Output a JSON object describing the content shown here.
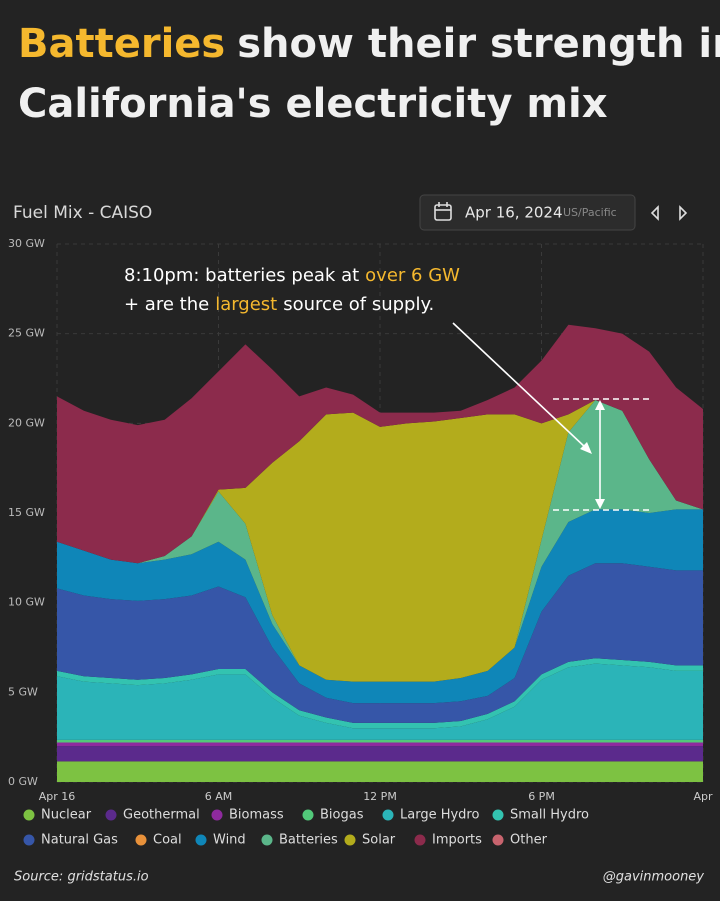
{
  "header": {
    "title_highlight": "Batteries",
    "title_rest_1": "show their strength in",
    "title_line_2": "California's electricity mix"
  },
  "widget": {
    "name": "Fuel Mix - CAISO",
    "date": "Apr 16, 2024",
    "timezone": "US/Pacific"
  },
  "footer": {
    "source": "Source: gridstatus.io",
    "credit": "@gavinmooney"
  },
  "chart_data": {
    "type": "stacked-area",
    "annotation": {
      "line_1_a": "8:10pm: batteries peak at",
      "line_1_b": "over 6 GW",
      "line_2_a": "+ are the",
      "line_2_b": "largest",
      "line_2_c": "source of supply."
    },
    "x": [
      0,
      1,
      2,
      3,
      4,
      5,
      6,
      7,
      8,
      9,
      10,
      11,
      12,
      13,
      14,
      15,
      16,
      17,
      18,
      19,
      20,
      21,
      22,
      23,
      24
    ],
    "xlim": [
      0,
      24
    ],
    "xticks": [
      {
        "value": 0,
        "label": "Apr 16"
      },
      {
        "value": 6,
        "label": "6 AM"
      },
      {
        "value": 12,
        "label": "12 PM"
      },
      {
        "value": 18,
        "label": "6 PM"
      },
      {
        "value": 24,
        "label": "Apr"
      }
    ],
    "ylim": [
      0,
      30
    ],
    "yticks": [
      {
        "value": 0,
        "label": "0 GW"
      },
      {
        "value": 5,
        "label": "5 GW"
      },
      {
        "value": 10,
        "label": "10 GW"
      },
      {
        "value": 15,
        "label": "15 GW"
      },
      {
        "value": 20,
        "label": "20 GW"
      },
      {
        "value": 25,
        "label": "25 GW"
      },
      {
        "value": 30,
        "label": "30 GW"
      }
    ],
    "grid": true,
    "series": [
      {
        "name": "Nuclear",
        "color": "#7dc242",
        "values": [
          1.15,
          1.15,
          1.15,
          1.15,
          1.15,
          1.15,
          1.15,
          1.15,
          1.15,
          1.15,
          1.15,
          1.15,
          1.15,
          1.15,
          1.15,
          1.15,
          1.15,
          1.15,
          1.15,
          1.15,
          1.15,
          1.15,
          1.15,
          1.15,
          1.15
        ]
      },
      {
        "name": "Geothermal",
        "color": "#5b2a8c",
        "values": [
          0.85,
          0.85,
          0.85,
          0.85,
          0.85,
          0.85,
          0.85,
          0.85,
          0.85,
          0.85,
          0.85,
          0.85,
          0.85,
          0.85,
          0.85,
          0.85,
          0.85,
          0.85,
          0.85,
          0.85,
          0.85,
          0.85,
          0.85,
          0.85,
          0.85
        ]
      },
      {
        "name": "Biomass",
        "color": "#8e2a9e",
        "values": [
          0.2,
          0.2,
          0.2,
          0.2,
          0.2,
          0.2,
          0.2,
          0.2,
          0.2,
          0.2,
          0.2,
          0.2,
          0.2,
          0.2,
          0.2,
          0.2,
          0.2,
          0.2,
          0.2,
          0.2,
          0.2,
          0.2,
          0.2,
          0.2,
          0.2
        ]
      },
      {
        "name": "Biogas",
        "color": "#52c97a",
        "values": [
          0.15,
          0.15,
          0.15,
          0.15,
          0.15,
          0.15,
          0.15,
          0.15,
          0.15,
          0.15,
          0.15,
          0.15,
          0.15,
          0.15,
          0.15,
          0.15,
          0.15,
          0.15,
          0.15,
          0.15,
          0.15,
          0.15,
          0.15,
          0.15,
          0.15
        ]
      },
      {
        "name": "Large Hydro",
        "color": "#2bb4b8",
        "values": [
          3.55,
          3.25,
          3.15,
          3.05,
          3.15,
          3.35,
          3.65,
          3.65,
          2.35,
          1.35,
          0.95,
          0.65,
          0.65,
          0.65,
          0.65,
          0.75,
          1.15,
          1.85,
          3.35,
          4.05,
          4.25,
          4.15,
          4.05,
          3.85,
          3.85
        ]
      },
      {
        "name": "Small Hydro",
        "color": "#33c3b0",
        "values": [
          0.3,
          0.3,
          0.3,
          0.3,
          0.3,
          0.3,
          0.3,
          0.3,
          0.3,
          0.3,
          0.3,
          0.3,
          0.3,
          0.3,
          0.3,
          0.3,
          0.3,
          0.3,
          0.3,
          0.3,
          0.3,
          0.3,
          0.3,
          0.3,
          0.3
        ]
      },
      {
        "name": "Natural Gas",
        "color": "#3656a8",
        "values": [
          4.6,
          4.5,
          4.4,
          4.4,
          4.4,
          4.4,
          4.6,
          4.0,
          2.5,
          1.5,
          1.1,
          1.1,
          1.1,
          1.1,
          1.1,
          1.1,
          1.0,
          1.3,
          3.5,
          4.8,
          5.3,
          5.4,
          5.3,
          5.3,
          5.3
        ]
      },
      {
        "name": "Coal",
        "color": "#e8913a",
        "values": [
          0,
          0,
          0,
          0,
          0,
          0,
          0,
          0,
          0,
          0,
          0,
          0,
          0,
          0,
          0,
          0,
          0,
          0,
          0,
          0,
          0,
          0,
          0,
          0,
          0
        ]
      },
      {
        "name": "Wind",
        "color": "#0f86b8",
        "values": [
          2.6,
          2.5,
          2.2,
          2.1,
          2.2,
          2.3,
          2.5,
          2.1,
          1.3,
          1.0,
          1.0,
          1.2,
          1.2,
          1.2,
          1.2,
          1.3,
          1.4,
          1.7,
          2.5,
          3.0,
          3.0,
          3.0,
          3.0,
          3.4,
          3.4
        ]
      },
      {
        "name": "Batteries",
        "color": "#5bb68a",
        "values": [
          0,
          0,
          0,
          0,
          0.2,
          1.0,
          2.8,
          2.0,
          0.5,
          0,
          0,
          0,
          0,
          0,
          0,
          0,
          0,
          0,
          1.5,
          5.0,
          6.1,
          5.5,
          3.0,
          0.5,
          0
        ]
      },
      {
        "name": "Solar",
        "color": "#b3ac1c",
        "values": [
          0,
          0,
          0,
          0,
          0,
          0,
          0.1,
          2.0,
          8.5,
          12.5,
          14.8,
          15.0,
          14.2,
          14.4,
          14.5,
          14.5,
          14.3,
          13.0,
          6.5,
          1.0,
          0,
          0,
          0,
          0,
          0
        ]
      },
      {
        "name": "Imports",
        "color": "#8c2b4c",
        "values": [
          8.1,
          7.8,
          7.8,
          7.7,
          7.6,
          7.7,
          6.6,
          8.0,
          5.2,
          2.5,
          1.5,
          1.0,
          0.8,
          0.6,
          0.5,
          0.4,
          0.8,
          1.5,
          3.5,
          5.0,
          4.0,
          4.3,
          6.0,
          6.3,
          5.6
        ]
      },
      {
        "name": "Other",
        "color": "#c8646e",
        "values": [
          0,
          0,
          0,
          0,
          0,
          0,
          0,
          0,
          0,
          0,
          0,
          0,
          0,
          0,
          0,
          0,
          0,
          0,
          0,
          0,
          0,
          0,
          0,
          0,
          0
        ]
      }
    ]
  }
}
